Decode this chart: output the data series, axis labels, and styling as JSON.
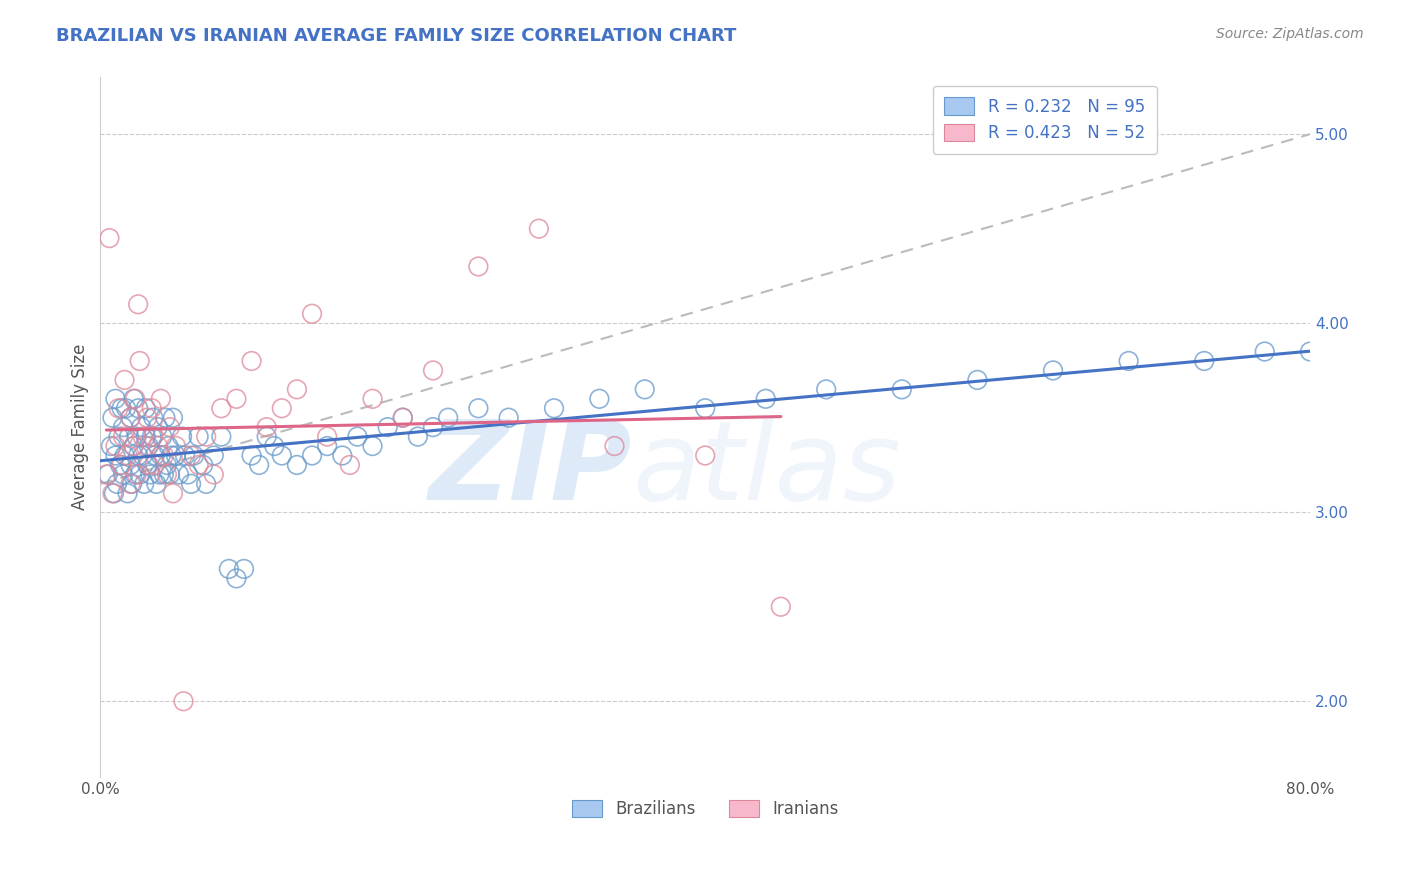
{
  "title": "BRAZILIAN VS IRANIAN AVERAGE FAMILY SIZE CORRELATION CHART",
  "source": "Source: ZipAtlas.com",
  "ylabel": "Average Family Size",
  "yticks": [
    2.0,
    3.0,
    4.0,
    5.0
  ],
  "xlim": [
    0.0,
    0.8
  ],
  "ylim": [
    1.6,
    5.3
  ],
  "legend_r1": "R = 0.232",
  "legend_n1": "N = 95",
  "legend_r2": "R = 0.423",
  "legend_n2": "N = 52",
  "color_brazilian_face": "#a8c8f0",
  "color_brazilian_edge": "#6699cc",
  "color_iranian_face": "#f8b8cc",
  "color_iranian_edge": "#dd8899",
  "color_line_brazilian": "#4472c4",
  "color_line_iranian": "#dd6688",
  "color_dashed": "#bbbbbb",
  "color_title": "#4472c4",
  "color_source": "#888888",
  "color_ytick": "#4472c4",
  "color_xtick": "#555555",
  "color_ylabel": "#555555",
  "color_grid": "#cccccc",
  "brazilians_x": [
    0.005,
    0.007,
    0.008,
    0.009,
    0.01,
    0.01,
    0.011,
    0.012,
    0.013,
    0.014,
    0.015,
    0.015,
    0.016,
    0.017,
    0.018,
    0.019,
    0.02,
    0.02,
    0.021,
    0.022,
    0.022,
    0.023,
    0.024,
    0.025,
    0.025,
    0.026,
    0.027,
    0.028,
    0.029,
    0.03,
    0.03,
    0.031,
    0.032,
    0.033,
    0.034,
    0.035,
    0.036,
    0.037,
    0.038,
    0.039,
    0.04,
    0.041,
    0.042,
    0.043,
    0.044,
    0.045,
    0.046,
    0.047,
    0.048,
    0.05,
    0.052,
    0.054,
    0.056,
    0.058,
    0.06,
    0.062,
    0.065,
    0.068,
    0.07,
    0.075,
    0.08,
    0.085,
    0.09,
    0.095,
    0.1,
    0.105,
    0.11,
    0.115,
    0.12,
    0.13,
    0.14,
    0.15,
    0.16,
    0.17,
    0.18,
    0.19,
    0.2,
    0.21,
    0.22,
    0.23,
    0.25,
    0.27,
    0.3,
    0.33,
    0.36,
    0.4,
    0.44,
    0.48,
    0.53,
    0.58,
    0.63,
    0.68,
    0.73,
    0.77,
    0.8
  ],
  "brazilians_y": [
    3.2,
    3.35,
    3.5,
    3.1,
    3.3,
    3.6,
    3.15,
    3.4,
    3.25,
    3.55,
    3.2,
    3.45,
    3.3,
    3.55,
    3.1,
    3.4,
    3.25,
    3.5,
    3.15,
    3.35,
    3.6,
    3.2,
    3.4,
    3.55,
    3.3,
    3.2,
    3.45,
    3.3,
    3.15,
    3.4,
    3.55,
    3.25,
    3.35,
    3.2,
    3.4,
    3.5,
    3.3,
    3.15,
    3.45,
    3.2,
    3.3,
    3.4,
    3.2,
    3.5,
    3.25,
    3.35,
    3.2,
    3.3,
    3.5,
    3.3,
    3.2,
    3.4,
    3.3,
    3.2,
    3.15,
    3.3,
    3.4,
    3.25,
    3.15,
    3.3,
    3.4,
    2.7,
    2.65,
    2.7,
    3.3,
    3.25,
    3.4,
    3.35,
    3.3,
    3.25,
    3.3,
    3.35,
    3.3,
    3.4,
    3.35,
    3.45,
    3.5,
    3.4,
    3.45,
    3.5,
    3.55,
    3.5,
    3.55,
    3.6,
    3.65,
    3.55,
    3.6,
    3.65,
    3.65,
    3.7,
    3.75,
    3.8,
    3.8,
    3.85,
    3.85
  ],
  "iranians_x": [
    0.004,
    0.006,
    0.008,
    0.01,
    0.012,
    0.014,
    0.015,
    0.016,
    0.018,
    0.02,
    0.02,
    0.022,
    0.023,
    0.024,
    0.025,
    0.026,
    0.028,
    0.03,
    0.031,
    0.032,
    0.034,
    0.035,
    0.036,
    0.038,
    0.04,
    0.042,
    0.044,
    0.046,
    0.048,
    0.05,
    0.055,
    0.06,
    0.065,
    0.07,
    0.075,
    0.08,
    0.09,
    0.1,
    0.11,
    0.12,
    0.13,
    0.14,
    0.15,
    0.165,
    0.18,
    0.2,
    0.22,
    0.25,
    0.29,
    0.34,
    0.4,
    0.45
  ],
  "iranians_y": [
    3.2,
    4.45,
    3.1,
    3.35,
    3.55,
    3.25,
    3.4,
    3.7,
    3.3,
    3.5,
    3.15,
    3.35,
    3.6,
    3.2,
    4.1,
    3.8,
    3.4,
    3.35,
    3.5,
    3.25,
    3.55,
    3.4,
    3.25,
    3.35,
    3.6,
    3.3,
    3.2,
    3.45,
    3.1,
    3.35,
    2.0,
    3.3,
    3.25,
    3.4,
    3.2,
    3.55,
    3.6,
    3.8,
    3.45,
    3.55,
    3.65,
    4.05,
    3.4,
    3.25,
    3.6,
    3.5,
    3.75,
    4.3,
    4.5,
    3.35,
    3.3,
    2.5
  ]
}
